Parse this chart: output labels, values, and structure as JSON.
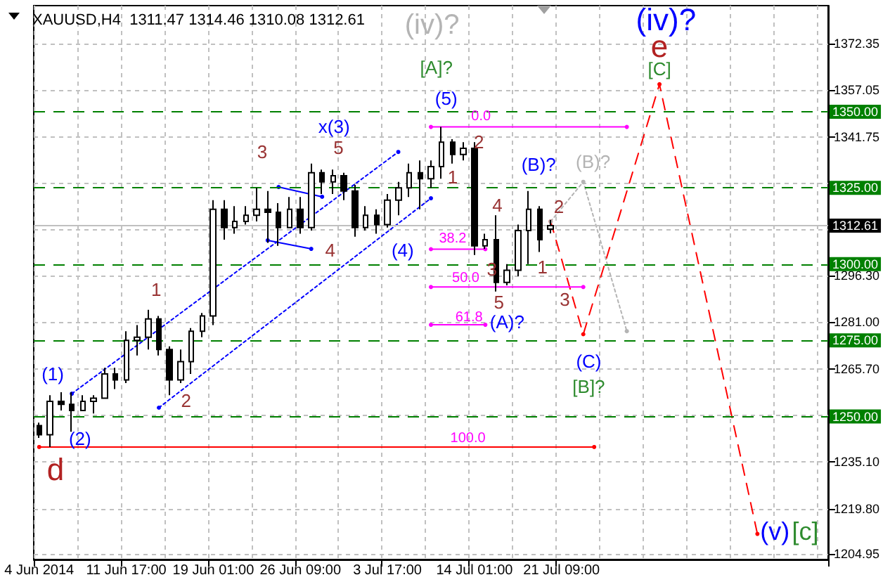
{
  "chart_data": {
    "type": "candlestick",
    "title": "XAUUSD,H4  1311.47 1314.46 1310.08 1312.61",
    "color": "#000000",
    "categories": [
      "4 Jun 2014",
      null,
      null,
      null,
      null,
      null,
      null,
      null,
      "11 Jun 17:00",
      null,
      null,
      null,
      null,
      null,
      null,
      null,
      "19 Jun 01:00",
      null,
      null,
      null,
      null,
      null,
      null,
      null,
      "26 Jun 09:00",
      null,
      null,
      null,
      null,
      null,
      null,
      null,
      "3 Jul 17:00",
      null,
      null,
      null,
      null,
      null,
      null,
      null,
      "14 Jul 01:00",
      null,
      null,
      null,
      null,
      null,
      null,
      null,
      "21 Jul 09:00",
      null,
      null,
      null,
      null,
      null,
      null,
      null,
      null,
      null,
      null,
      null,
      null,
      null,
      null,
      null,
      null,
      null,
      null,
      null,
      null,
      null,
      null,
      null,
      null
    ],
    "ohlc": [
      [
        1247,
        1248,
        1243,
        1244
      ],
      [
        1244,
        1257,
        1240,
        1255
      ],
      [
        1255,
        1258,
        1252,
        1254
      ],
      [
        1254,
        1258,
        1245,
        1252
      ],
      [
        1252,
        1257,
        1252,
        1255
      ],
      [
        1255,
        1257,
        1251,
        1256
      ],
      [
        1256,
        1266,
        1256,
        1264
      ],
      [
        1264,
        1266,
        1259,
        1262
      ],
      [
        1262,
        1278,
        1261,
        1275
      ],
      [
        1275,
        1280,
        1270,
        1276
      ],
      [
        1276,
        1285,
        1272,
        1282
      ],
      [
        1282,
        1283,
        1270,
        1272
      ],
      [
        1272,
        1273,
        1257,
        1262
      ],
      [
        1262,
        1272,
        1261,
        1268
      ],
      [
        1268,
        1279,
        1264,
        1278
      ],
      [
        1278,
        1284,
        1276,
        1283
      ],
      [
        1283,
        1321,
        1280,
        1318
      ],
      [
        1318,
        1321,
        1308,
        1312
      ],
      [
        1312,
        1319,
        1310,
        1314
      ],
      [
        1314,
        1319,
        1313,
        1316
      ],
      [
        1316,
        1325,
        1314,
        1318
      ],
      [
        1318,
        1324,
        1307,
        1317
      ],
      [
        1317,
        1320,
        1306,
        1312
      ],
      [
        1312,
        1322,
        1312,
        1318
      ],
      [
        1318,
        1322,
        1310,
        1312
      ],
      [
        1312,
        1333,
        1311,
        1330
      ],
      [
        1330,
        1331,
        1323,
        1327
      ],
      [
        1327,
        1331,
        1323,
        1329
      ],
      [
        1329,
        1330,
        1321,
        1324
      ],
      [
        1324,
        1326,
        1309,
        1312
      ],
      [
        1312,
        1319,
        1311,
        1316
      ],
      [
        1316,
        1318,
        1310,
        1313
      ],
      [
        1313,
        1323,
        1312,
        1321
      ],
      [
        1321,
        1327,
        1316,
        1325
      ],
      [
        1325,
        1333,
        1322,
        1330
      ],
      [
        1330,
        1334,
        1318,
        1328
      ],
      [
        1328,
        1334,
        1325,
        1332
      ],
      [
        1332,
        1345,
        1328,
        1340
      ],
      [
        1340,
        1341,
        1333,
        1336
      ],
      [
        1336,
        1340,
        1334,
        1338
      ],
      [
        1338,
        1340,
        1303,
        1306
      ],
      [
        1306,
        1310,
        1305,
        1308
      ],
      [
        1308,
        1316,
        1291,
        1294
      ],
      [
        1294,
        1300,
        1293,
        1298
      ],
      [
        1298,
        1313,
        1296,
        1311
      ],
      [
        1311,
        1324,
        1300,
        1318
      ],
      [
        1318,
        1319,
        1304,
        1308
      ],
      [
        1311.47,
        1314.46,
        1310.08,
        1312.61
      ],
      null,
      null,
      null,
      null,
      null,
      null,
      null,
      null,
      null,
      null,
      null,
      null,
      null,
      null,
      null,
      null,
      null,
      null,
      null,
      null,
      null,
      null,
      null,
      null,
      null
    ],
    "series": [
      {
        "type": "line",
        "color": "#ff0000",
        "line_style": "dashed",
        "marker": "circle",
        "values": [
          null,
          null,
          null,
          null,
          null,
          null,
          null,
          null,
          null,
          null,
          null,
          null,
          null,
          null,
          null,
          null,
          null,
          null,
          null,
          null,
          null,
          null,
          null,
          null,
          null,
          null,
          null,
          null,
          null,
          null,
          null,
          null,
          null,
          null,
          null,
          null,
          null,
          null,
          null,
          null,
          null,
          null,
          null,
          null,
          null,
          null,
          null,
          1314,
          null,
          null,
          1277,
          null,
          null,
          null,
          null,
          null,
          null,
          1359,
          null,
          null,
          null,
          null,
          null,
          null,
          null,
          null,
          1211.5,
          null,
          null,
          null,
          null,
          null,
          null
        ]
      },
      {
        "type": "line",
        "color": "#b4b4b4",
        "line_style": "dotted",
        "marker": "circle",
        "values": [
          null,
          null,
          null,
          null,
          null,
          null,
          null,
          null,
          null,
          null,
          null,
          null,
          null,
          null,
          null,
          null,
          null,
          null,
          null,
          null,
          null,
          null,
          null,
          null,
          null,
          null,
          null,
          null,
          null,
          null,
          null,
          null,
          null,
          null,
          null,
          null,
          null,
          null,
          null,
          null,
          null,
          null,
          null,
          null,
          null,
          null,
          null,
          1314,
          null,
          null,
          1327,
          null,
          null,
          null,
          1278,
          null,
          null,
          null,
          null,
          null,
          null,
          null,
          null,
          null,
          null,
          null,
          null,
          null,
          null,
          null,
          null,
          null,
          null
        ]
      },
      {
        "type": "line",
        "color": "#0000ff",
        "line_style": "dotted",
        "marker": "circle",
        "values": [
          null,
          null,
          null,
          1257.5,
          null,
          null,
          null,
          null,
          null,
          null,
          null,
          null,
          null,
          null,
          null,
          null,
          null,
          null,
          null,
          null,
          null,
          null,
          null,
          null,
          null,
          null,
          null,
          null,
          null,
          null,
          null,
          null,
          null,
          1336.8,
          null,
          null,
          null,
          null,
          null,
          null,
          null,
          null,
          null,
          null,
          null,
          null,
          null,
          null,
          null,
          null,
          null,
          null,
          null,
          null,
          null,
          null,
          null,
          null,
          null,
          null,
          null,
          null,
          null,
          null,
          null,
          null,
          null,
          null,
          null,
          null,
          null,
          null,
          null
        ]
      },
      {
        "type": "line",
        "color": "#0000ff",
        "line_style": "dotted",
        "marker": "circle",
        "values": [
          null,
          null,
          null,
          null,
          null,
          null,
          null,
          null,
          null,
          null,
          null,
          1252.9,
          null,
          null,
          null,
          null,
          null,
          null,
          null,
          null,
          null,
          null,
          null,
          null,
          null,
          null,
          null,
          null,
          null,
          null,
          null,
          null,
          null,
          null,
          null,
          null,
          1321.6,
          null,
          null,
          null,
          null,
          null,
          null,
          null,
          null,
          null,
          null,
          null,
          null,
          null,
          null,
          null,
          null,
          null,
          null,
          null,
          null,
          null,
          null,
          null,
          null,
          null,
          null,
          null,
          null,
          null,
          null,
          null,
          null,
          null,
          null,
          null,
          null
        ]
      },
      {
        "type": "line",
        "color": "#0000ff",
        "line_style": "solid",
        "marker": "circle",
        "values": [
          null,
          null,
          null,
          null,
          null,
          null,
          null,
          null,
          null,
          null,
          null,
          null,
          null,
          null,
          null,
          null,
          null,
          null,
          null,
          null,
          null,
          null,
          1325.3,
          null,
          null,
          null,
          1322.1,
          null,
          null,
          null,
          null,
          null,
          null,
          null,
          null,
          null,
          null,
          null,
          null,
          null,
          null,
          null,
          null,
          null,
          null,
          null,
          null,
          null,
          null,
          null,
          null,
          null,
          null,
          null,
          null,
          null,
          null,
          null,
          null,
          null,
          null,
          null,
          null,
          null,
          null,
          null,
          null,
          null,
          null,
          null,
          null,
          null,
          null
        ]
      },
      {
        "type": "line",
        "color": "#0000ff",
        "line_style": "solid",
        "marker": "circle",
        "values": [
          null,
          null,
          null,
          null,
          null,
          null,
          null,
          null,
          null,
          null,
          null,
          null,
          null,
          null,
          null,
          null,
          null,
          null,
          null,
          null,
          null,
          1307.8,
          null,
          null,
          null,
          1305,
          null,
          null,
          null,
          null,
          null,
          null,
          null,
          null,
          null,
          null,
          null,
          null,
          null,
          null,
          null,
          null,
          null,
          null,
          null,
          null,
          null,
          null,
          null,
          null,
          null,
          null,
          null,
          null,
          null,
          null,
          null,
          null,
          null,
          null,
          null,
          null,
          null,
          null,
          null,
          null,
          null,
          null,
          null,
          null,
          null,
          null,
          null
        ]
      },
      {
        "type": "line",
        "color": "#ff0000",
        "line_style": "solid",
        "marker": "circle",
        "values": [
          1240,
          null,
          null,
          null,
          null,
          null,
          null,
          null,
          null,
          null,
          null,
          null,
          null,
          null,
          null,
          null,
          null,
          null,
          null,
          null,
          null,
          null,
          null,
          null,
          null,
          null,
          null,
          null,
          null,
          null,
          null,
          null,
          null,
          null,
          null,
          null,
          null,
          null,
          null,
          null,
          null,
          null,
          null,
          null,
          null,
          null,
          null,
          null,
          null,
          null,
          null,
          1240,
          null,
          null,
          null,
          null,
          null,
          null,
          null,
          null,
          null,
          null,
          null,
          null,
          null,
          null,
          null,
          null,
          null,
          null,
          null,
          null,
          null
        ]
      },
      {
        "type": "line",
        "color": "#ff00ff",
        "line_style": "solid",
        "marker": "circle",
        "values": [
          null,
          null,
          null,
          null,
          null,
          null,
          null,
          null,
          null,
          null,
          null,
          null,
          null,
          null,
          null,
          null,
          null,
          null,
          null,
          null,
          null,
          null,
          null,
          null,
          null,
          null,
          null,
          null,
          null,
          null,
          null,
          null,
          null,
          null,
          null,
          null,
          1345,
          null,
          null,
          null,
          null,
          null,
          null,
          null,
          null,
          null,
          null,
          null,
          null,
          null,
          null,
          null,
          null,
          null,
          1345,
          null,
          null,
          null,
          null,
          null,
          null,
          null,
          null,
          null,
          null,
          null,
          null,
          null,
          null,
          null,
          null,
          null,
          null
        ]
      },
      {
        "type": "line",
        "color": "#ff00ff",
        "line_style": "solid",
        "marker": "circle",
        "values": [
          null,
          null,
          null,
          null,
          null,
          null,
          null,
          null,
          null,
          null,
          null,
          null,
          null,
          null,
          null,
          null,
          null,
          null,
          null,
          null,
          null,
          null,
          null,
          null,
          null,
          null,
          null,
          null,
          null,
          null,
          null,
          null,
          null,
          null,
          null,
          null,
          1304.9,
          null,
          null,
          null,
          null,
          1304.9,
          null,
          null,
          null,
          null,
          null,
          null,
          null,
          null,
          null,
          null,
          null,
          null,
          null,
          null,
          null,
          null,
          null,
          null,
          null,
          null,
          null,
          null,
          null,
          null,
          null,
          null,
          null,
          null,
          null,
          null,
          null
        ]
      },
      {
        "type": "line",
        "color": "#ff00ff",
        "line_style": "solid",
        "marker": "circle",
        "values": [
          null,
          null,
          null,
          null,
          null,
          null,
          null,
          null,
          null,
          null,
          null,
          null,
          null,
          null,
          null,
          null,
          null,
          null,
          null,
          null,
          null,
          null,
          null,
          null,
          null,
          null,
          null,
          null,
          null,
          null,
          null,
          null,
          null,
          null,
          null,
          null,
          1292.5,
          null,
          null,
          null,
          null,
          null,
          null,
          null,
          null,
          null,
          null,
          null,
          null,
          null,
          1292.5,
          null,
          null,
          null,
          null,
          null,
          null,
          null,
          null,
          null,
          null,
          null,
          null,
          null,
          null,
          null,
          null,
          null,
          null,
          null,
          null,
          null,
          null
        ]
      },
      {
        "type": "line",
        "color": "#ff00ff",
        "line_style": "solid",
        "marker": "circle",
        "values": [
          null,
          null,
          null,
          null,
          null,
          null,
          null,
          null,
          null,
          null,
          null,
          null,
          null,
          null,
          null,
          null,
          null,
          null,
          null,
          null,
          null,
          null,
          null,
          null,
          null,
          null,
          null,
          null,
          null,
          null,
          null,
          null,
          null,
          null,
          null,
          null,
          1280.1,
          null,
          null,
          null,
          null,
          1280.1,
          null,
          null,
          null,
          null,
          null,
          null,
          null,
          null,
          null,
          null,
          null,
          null,
          null,
          null,
          null,
          null,
          null,
          null,
          null,
          null,
          null,
          null,
          null,
          null,
          null,
          null,
          null,
          null,
          null,
          null,
          null
        ]
      }
    ],
    "ylim": [
      1203.1,
      1384.8
    ],
    "yticks": [
      {
        "value": 1204.95,
        "label": "1204.95"
      },
      {
        "value": 1219.8,
        "label": "1219.80"
      },
      {
        "value": 1235.1,
        "label": "1235.10"
      },
      {
        "value": 1250.4,
        "label": null
      },
      {
        "value": 1265.7,
        "label": "1265.70"
      },
      {
        "value": 1281,
        "label": "1281.00"
      },
      {
        "value": 1296.3,
        "label": "1296.30"
      },
      {
        "value": 1311.15,
        "label": null
      },
      {
        "value": 1326.45,
        "label": null
      },
      {
        "value": 1341.75,
        "label": "1341.75"
      },
      {
        "value": 1357.05,
        "label": "1357.05"
      },
      {
        "value": 1372.35,
        "label": "1372.35"
      }
    ],
    "ref_lines": [
      {
        "axis": "y",
        "value": 1350,
        "label": "1350.00",
        "color": "#008000",
        "line_style": "dashed"
      },
      {
        "axis": "y",
        "value": 1325,
        "label": "1325.00",
        "color": "#008000",
        "line_style": "dashed"
      },
      {
        "axis": "y",
        "value": 1312.61,
        "label": "1312.61",
        "color": "#c0c0c0",
        "line_style": "solid"
      },
      {
        "axis": "y",
        "value": 1300,
        "label": "1300.00",
        "color": "#008000",
        "line_style": "dashed"
      },
      {
        "axis": "y",
        "value": 1275,
        "label": "1275.00",
        "color": "#008000",
        "line_style": "dashed"
      },
      {
        "axis": "y",
        "value": 1250,
        "label": "1250.00",
        "color": "#008000",
        "line_style": "dashed"
      }
    ],
    "annotations": [
      "(iv)?",
      "[A]?",
      "(5)",
      "x(3)",
      "3",
      "5",
      "4",
      "(4)",
      "1",
      "2",
      "4",
      {
        "text": "3",
        "y": 1304.9
      },
      "5",
      "(A)?",
      "(B)?",
      "1",
      "2",
      {
        "text": "3",
        "y": 1292.5
      },
      "(B)?",
      "(C)",
      "[B]?",
      "(iv)?",
      "e",
      "[C]",
      "(v)",
      "[c]",
      "1",
      "2",
      "(1)",
      "(2)",
      "d",
      "0.0",
      "38.2",
      "50.0",
      "61.8",
      "100.0"
    ],
    "grid": true
  }
}
